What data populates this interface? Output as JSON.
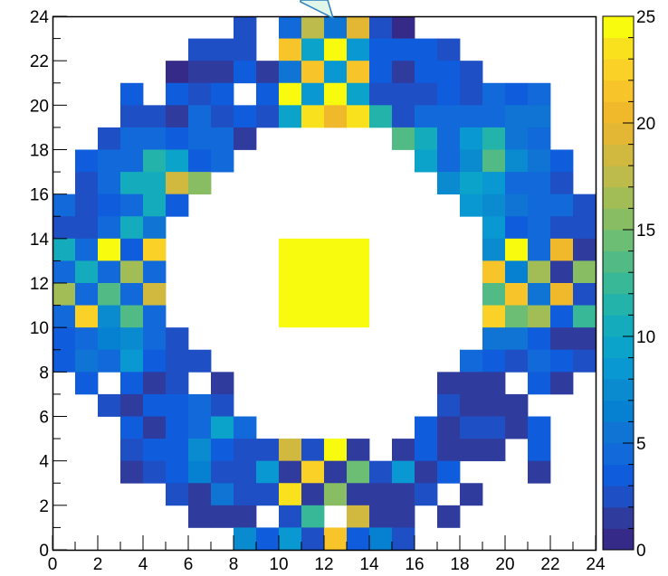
{
  "chart_data": {
    "type": "heatmap",
    "xlim": [
      0,
      24
    ],
    "ylim": [
      0,
      24
    ],
    "x_ticks": [
      "0",
      "2",
      "4",
      "6",
      "8",
      "10",
      "12",
      "14",
      "16",
      "18",
      "20",
      "22",
      "24"
    ],
    "y_ticks": [
      "0",
      "2",
      "4",
      "6",
      "8",
      "10",
      "12",
      "14",
      "16",
      "18",
      "20",
      "22",
      "24"
    ],
    "colorbar": {
      "range": [
        0,
        25
      ],
      "ticks": [
        "0",
        "5",
        "10",
        "15",
        "20",
        "25"
      ],
      "palette": [
        "#352a87",
        "#2f3c9e",
        "#1f4fc4",
        "#0f5cdd",
        "#1269d9",
        "#0f74d4",
        "#0681d2",
        "#0a8bcf",
        "#0998d1",
        "#0ba3c9",
        "#14acbd",
        "#23b3ab",
        "#38b897",
        "#52bb85",
        "#6bbe73",
        "#88bd64",
        "#a3bd56",
        "#bdbb4b",
        "#d1b83e",
        "#e3b733",
        "#f0b92b",
        "#f7c42a",
        "#f9d127",
        "#f9e11e",
        "#f9fb0e"
      ]
    },
    "cells": [
      [
        8,
        23,
        2
      ],
      [
        10,
        23,
        4
      ],
      [
        11,
        23,
        17
      ],
      [
        12,
        23,
        5
      ],
      [
        13,
        23,
        19
      ],
      [
        14,
        23,
        2
      ],
      [
        15,
        23,
        0
      ],
      [
        6,
        22,
        2
      ],
      [
        7,
        22,
        2
      ],
      [
        8,
        22,
        2
      ],
      [
        10,
        22,
        21
      ],
      [
        11,
        22,
        9
      ],
      [
        12,
        22,
        25
      ],
      [
        13,
        22,
        8
      ],
      [
        14,
        22,
        3
      ],
      [
        15,
        22,
        3
      ],
      [
        16,
        22,
        3
      ],
      [
        17,
        22,
        2
      ],
      [
        5,
        21,
        0
      ],
      [
        6,
        21,
        1
      ],
      [
        7,
        21,
        1
      ],
      [
        8,
        21,
        3
      ],
      [
        9,
        21,
        1
      ],
      [
        10,
        21,
        5
      ],
      [
        11,
        21,
        21
      ],
      [
        12,
        21,
        8
      ],
      [
        13,
        21,
        21
      ],
      [
        14,
        21,
        3
      ],
      [
        15,
        21,
        1
      ],
      [
        16,
        21,
        3
      ],
      [
        17,
        21,
        3
      ],
      [
        18,
        21,
        2
      ],
      [
        3,
        20,
        3
      ],
      [
        5,
        20,
        3
      ],
      [
        6,
        20,
        2
      ],
      [
        7,
        20,
        3
      ],
      [
        9,
        20,
        3
      ],
      [
        10,
        20,
        24
      ],
      [
        11,
        20,
        8
      ],
      [
        12,
        20,
        25
      ],
      [
        13,
        20,
        9
      ],
      [
        14,
        20,
        2
      ],
      [
        15,
        20,
        2
      ],
      [
        16,
        20,
        2
      ],
      [
        17,
        20,
        3
      ],
      [
        18,
        20,
        2
      ],
      [
        19,
        20,
        4
      ],
      [
        20,
        20,
        3
      ],
      [
        21,
        20,
        4
      ],
      [
        3,
        19,
        2
      ],
      [
        4,
        19,
        2
      ],
      [
        5,
        19,
        1
      ],
      [
        6,
        19,
        4
      ],
      [
        7,
        19,
        2
      ],
      [
        8,
        19,
        3
      ],
      [
        9,
        19,
        2
      ],
      [
        10,
        19,
        9
      ],
      [
        11,
        19,
        23
      ],
      [
        12,
        19,
        20
      ],
      [
        13,
        19,
        23
      ],
      [
        14,
        19,
        11
      ],
      [
        15,
        19,
        2
      ],
      [
        16,
        19,
        4
      ],
      [
        17,
        19,
        4
      ],
      [
        18,
        19,
        4
      ],
      [
        19,
        19,
        4
      ],
      [
        20,
        19,
        5
      ],
      [
        21,
        19,
        5
      ],
      [
        2,
        18,
        2
      ],
      [
        3,
        18,
        4
      ],
      [
        4,
        18,
        4
      ],
      [
        5,
        18,
        3
      ],
      [
        6,
        18,
        4
      ],
      [
        7,
        18,
        4
      ],
      [
        8,
        18,
        1
      ],
      [
        15,
        18,
        13
      ],
      [
        16,
        18,
        10
      ],
      [
        17,
        18,
        4
      ],
      [
        18,
        18,
        8
      ],
      [
        19,
        18,
        11
      ],
      [
        20,
        18,
        5
      ],
      [
        21,
        18,
        4
      ],
      [
        1,
        17,
        3
      ],
      [
        2,
        17,
        4
      ],
      [
        3,
        17,
        4
      ],
      [
        4,
        17,
        11
      ],
      [
        5,
        17,
        9
      ],
      [
        6,
        17,
        3
      ],
      [
        7,
        17,
        4
      ],
      [
        16,
        17,
        9
      ],
      [
        17,
        17,
        4
      ],
      [
        18,
        17,
        7
      ],
      [
        19,
        17,
        13
      ],
      [
        20,
        17,
        7
      ],
      [
        21,
        17,
        5
      ],
      [
        22,
        17,
        3
      ],
      [
        1,
        16,
        2
      ],
      [
        2,
        16,
        4
      ],
      [
        3,
        16,
        10
      ],
      [
        4,
        16,
        10
      ],
      [
        5,
        16,
        18
      ],
      [
        6,
        16,
        15
      ],
      [
        17,
        16,
        7
      ],
      [
        18,
        16,
        9
      ],
      [
        19,
        16,
        8
      ],
      [
        20,
        16,
        4
      ],
      [
        21,
        16,
        4
      ],
      [
        22,
        16,
        2
      ],
      [
        0,
        15,
        4
      ],
      [
        1,
        15,
        2
      ],
      [
        2,
        15,
        3
      ],
      [
        3,
        15,
        4
      ],
      [
        4,
        15,
        10
      ],
      [
        5,
        15,
        3
      ],
      [
        18,
        15,
        8
      ],
      [
        19,
        15,
        7
      ],
      [
        20,
        15,
        5
      ],
      [
        21,
        15,
        4
      ],
      [
        22,
        15,
        4
      ],
      [
        23,
        15,
        2
      ],
      [
        0,
        14,
        2
      ],
      [
        1,
        14,
        2
      ],
      [
        2,
        14,
        4
      ],
      [
        3,
        14,
        10
      ],
      [
        4,
        14,
        5
      ],
      [
        19,
        14,
        8
      ],
      [
        20,
        14,
        3
      ],
      [
        21,
        14,
        4
      ],
      [
        22,
        14,
        2
      ],
      [
        23,
        14,
        2
      ],
      [
        0,
        13,
        10
      ],
      [
        1,
        13,
        4
      ],
      [
        2,
        13,
        25
      ],
      [
        3,
        13,
        3
      ],
      [
        4,
        13,
        22
      ],
      [
        19,
        13,
        7
      ],
      [
        20,
        13,
        25
      ],
      [
        21,
        13,
        4
      ],
      [
        22,
        13,
        20
      ],
      [
        23,
        13,
        1
      ],
      [
        0,
        12,
        4
      ],
      [
        1,
        12,
        10
      ],
      [
        2,
        12,
        4
      ],
      [
        3,
        12,
        16
      ],
      [
        4,
        12,
        4
      ],
      [
        19,
        12,
        21
      ],
      [
        20,
        12,
        6
      ],
      [
        21,
        12,
        16
      ],
      [
        22,
        12,
        1
      ],
      [
        23,
        12,
        15
      ],
      [
        0,
        11,
        16
      ],
      [
        1,
        11,
        4
      ],
      [
        2,
        11,
        13
      ],
      [
        3,
        11,
        4
      ],
      [
        4,
        11,
        18
      ],
      [
        19,
        11,
        13
      ],
      [
        20,
        11,
        21
      ],
      [
        21,
        11,
        5
      ],
      [
        22,
        11,
        20
      ],
      [
        23,
        11,
        2
      ],
      [
        0,
        10,
        4
      ],
      [
        1,
        10,
        22
      ],
      [
        2,
        10,
        7
      ],
      [
        3,
        10,
        13
      ],
      [
        4,
        10,
        4
      ],
      [
        19,
        10,
        22
      ],
      [
        20,
        10,
        14
      ],
      [
        21,
        10,
        16
      ],
      [
        22,
        10,
        3
      ],
      [
        23,
        10,
        12
      ],
      [
        0,
        9,
        3
      ],
      [
        1,
        9,
        4
      ],
      [
        2,
        9,
        6
      ],
      [
        3,
        9,
        7
      ],
      [
        4,
        9,
        4
      ],
      [
        5,
        9,
        2
      ],
      [
        19,
        9,
        5
      ],
      [
        20,
        9,
        5
      ],
      [
        21,
        9,
        3
      ],
      [
        22,
        9,
        1
      ],
      [
        23,
        9,
        1
      ],
      [
        0,
        8,
        3
      ],
      [
        1,
        8,
        5
      ],
      [
        2,
        8,
        4
      ],
      [
        3,
        8,
        8
      ],
      [
        4,
        8,
        3
      ],
      [
        5,
        8,
        2
      ],
      [
        6,
        8,
        2
      ],
      [
        18,
        8,
        4
      ],
      [
        19,
        8,
        3
      ],
      [
        20,
        8,
        2
      ],
      [
        21,
        8,
        4
      ],
      [
        22,
        8,
        3
      ],
      [
        23,
        8,
        2
      ],
      [
        1,
        7,
        3
      ],
      [
        3,
        7,
        3
      ],
      [
        4,
        7,
        1
      ],
      [
        5,
        7,
        2
      ],
      [
        7,
        7,
        1
      ],
      [
        17,
        7,
        1
      ],
      [
        18,
        7,
        1
      ],
      [
        19,
        7,
        1
      ],
      [
        21,
        7,
        3
      ],
      [
        22,
        7,
        1
      ],
      [
        2,
        6,
        2
      ],
      [
        3,
        6,
        1
      ],
      [
        4,
        6,
        3
      ],
      [
        5,
        6,
        3
      ],
      [
        6,
        6,
        4
      ],
      [
        7,
        6,
        2
      ],
      [
        17,
        6,
        2
      ],
      [
        18,
        6,
        1
      ],
      [
        19,
        6,
        1
      ],
      [
        20,
        6,
        1
      ],
      [
        3,
        5,
        3
      ],
      [
        4,
        5,
        1
      ],
      [
        5,
        5,
        3
      ],
      [
        6,
        5,
        4
      ],
      [
        7,
        5,
        9
      ],
      [
        8,
        5,
        4
      ],
      [
        16,
        5,
        3
      ],
      [
        17,
        5,
        1
      ],
      [
        18,
        5,
        2
      ],
      [
        19,
        5,
        2
      ],
      [
        20,
        5,
        1
      ],
      [
        21,
        5,
        3
      ],
      [
        3,
        4,
        2
      ],
      [
        4,
        4,
        3
      ],
      [
        5,
        4,
        3
      ],
      [
        6,
        4,
        7
      ],
      [
        7,
        4,
        3
      ],
      [
        8,
        4,
        2
      ],
      [
        9,
        4,
        2
      ],
      [
        10,
        4,
        18
      ],
      [
        11,
        4,
        2
      ],
      [
        12,
        4,
        25
      ],
      [
        13,
        4,
        1
      ],
      [
        15,
        4,
        1
      ],
      [
        16,
        4,
        3
      ],
      [
        17,
        4,
        1
      ],
      [
        18,
        4,
        1
      ],
      [
        19,
        4,
        1
      ],
      [
        21,
        4,
        3
      ],
      [
        3,
        3,
        1
      ],
      [
        4,
        3,
        2
      ],
      [
        5,
        3,
        3
      ],
      [
        6,
        3,
        6
      ],
      [
        7,
        3,
        2
      ],
      [
        8,
        3,
        2
      ],
      [
        9,
        3,
        8
      ],
      [
        10,
        3,
        1
      ],
      [
        11,
        3,
        22
      ],
      [
        12,
        3,
        1
      ],
      [
        13,
        3,
        14
      ],
      [
        14,
        3,
        2
      ],
      [
        15,
        3,
        8
      ],
      [
        16,
        3,
        1
      ],
      [
        17,
        3,
        3
      ],
      [
        21,
        3,
        1
      ],
      [
        5,
        2,
        2
      ],
      [
        6,
        2,
        1
      ],
      [
        7,
        2,
        5
      ],
      [
        8,
        2,
        2
      ],
      [
        9,
        2,
        2
      ],
      [
        10,
        2,
        23
      ],
      [
        11,
        2,
        1
      ],
      [
        12,
        2,
        15
      ],
      [
        13,
        2,
        1
      ],
      [
        14,
        2,
        1
      ],
      [
        15,
        2,
        1
      ],
      [
        16,
        2,
        2
      ],
      [
        18,
        2,
        1
      ],
      [
        6,
        1,
        1
      ],
      [
        7,
        1,
        1
      ],
      [
        8,
        1,
        1
      ],
      [
        10,
        1,
        2
      ],
      [
        11,
        1,
        12
      ],
      [
        13,
        1,
        18
      ],
      [
        14,
        1,
        1
      ],
      [
        15,
        1,
        1
      ],
      [
        17,
        1,
        1
      ],
      [
        8,
        0,
        7
      ],
      [
        9,
        0,
        3
      ],
      [
        10,
        0,
        8
      ],
      [
        11,
        0,
        2
      ],
      [
        12,
        0,
        21
      ],
      [
        13,
        0,
        3
      ],
      [
        14,
        0,
        6
      ],
      [
        15,
        0,
        2
      ]
    ],
    "center_block": {
      "x": [
        10,
        14
      ],
      "y": [
        10,
        14
      ],
      "value": 25
    }
  }
}
